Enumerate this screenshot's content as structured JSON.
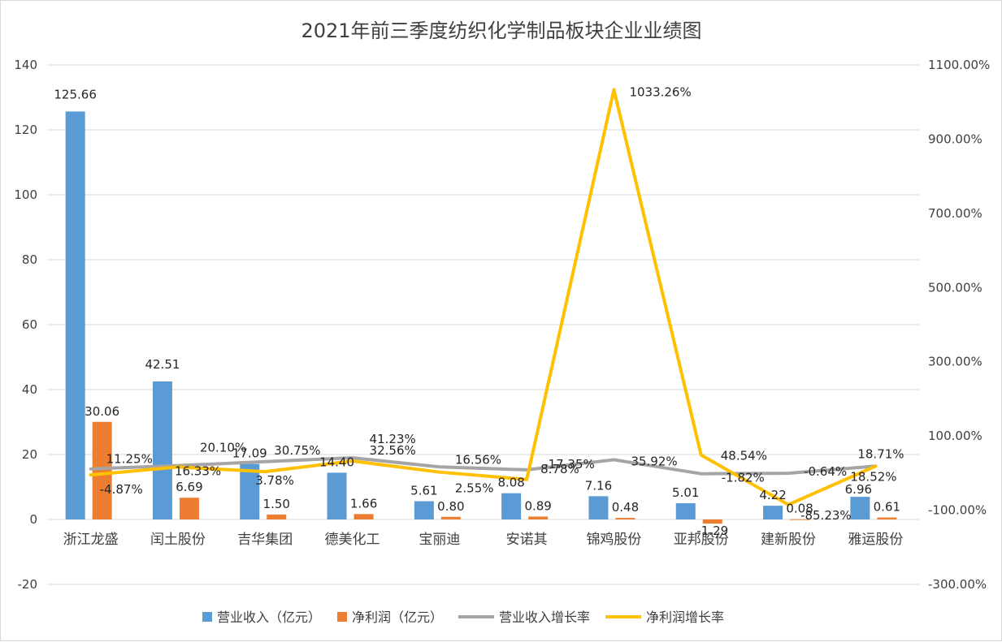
{
  "chart_data": {
    "type": "bar",
    "title": "2021年前三季度纺织化学制品板块企业业绩图",
    "categories": [
      "浙江龙盛",
      "闰土股份",
      "吉华集团",
      "德美化工",
      "宝丽迪",
      "安诺其",
      "锦鸡股份",
      "亚邦股份",
      "建新股份",
      "雅运股份"
    ],
    "y_left": {
      "min": -20,
      "max": 140,
      "ticks": [
        -20,
        0,
        20,
        40,
        60,
        80,
        100,
        120,
        140
      ]
    },
    "y_right": {
      "min": -300,
      "max": 1100,
      "ticks": [
        -300,
        -100,
        100,
        300,
        500,
        700,
        900,
        1100
      ],
      "tick_labels": [
        "-300.00%",
        "-100.00%",
        "100.00%",
        "300.00%",
        "500.00%",
        "700.00%",
        "900.00%",
        "1100.00%"
      ]
    },
    "grid": true,
    "legend_position": "bottom",
    "series": [
      {
        "name": "营业收入（亿元）",
        "kind": "bar",
        "axis": "left",
        "color": "#5b9bd5",
        "values": [
          125.66,
          42.51,
          17.09,
          14.4,
          5.61,
          8.08,
          7.16,
          5.01,
          4.22,
          6.96
        ],
        "labels": [
          "125.66",
          "42.51",
          "17.09",
          "14.40",
          "5.61",
          "8.08",
          "7.16",
          "5.01",
          "4.22",
          "6.96"
        ]
      },
      {
        "name": "净利润（亿元）",
        "kind": "bar",
        "axis": "left",
        "color": "#ed7d31",
        "values": [
          30.06,
          6.69,
          1.5,
          1.66,
          0.8,
          0.89,
          0.48,
          -1.29,
          0.08,
          0.61
        ],
        "labels": [
          "30.06",
          "6.69",
          "1.50",
          "1.66",
          "0.80",
          "0.89",
          "0.48",
          "-1.29",
          "0.08",
          "0.61"
        ]
      },
      {
        "name": "营业收入增长率",
        "kind": "line",
        "axis": "right",
        "color": "#a5a5a5",
        "values": [
          11.25,
          20.1,
          30.75,
          41.23,
          16.56,
          8.78,
          35.92,
          -1.82,
          -0.64,
          18.71
        ],
        "labels": [
          "11.25%",
          "20.10%",
          "30.75%",
          "41.23%",
          "16.56%",
          "8.78%",
          "35.92%",
          "-1.82%",
          "-0.64%",
          "18.71%"
        ]
      },
      {
        "name": "净利润增长率",
        "kind": "line",
        "axis": "right",
        "color": "#ffc000",
        "values": [
          -4.87,
          16.33,
          3.78,
          32.56,
          2.55,
          -17.35,
          1033.26,
          48.54,
          -85.23,
          18.52
        ],
        "labels": [
          "-4.87%",
          "16.33%",
          "3.78%",
          "32.56%",
          "2.55%",
          "-17.35%",
          "1033.26%",
          "48.54%",
          "-85.23%",
          "18.52%"
        ]
      }
    ]
  }
}
